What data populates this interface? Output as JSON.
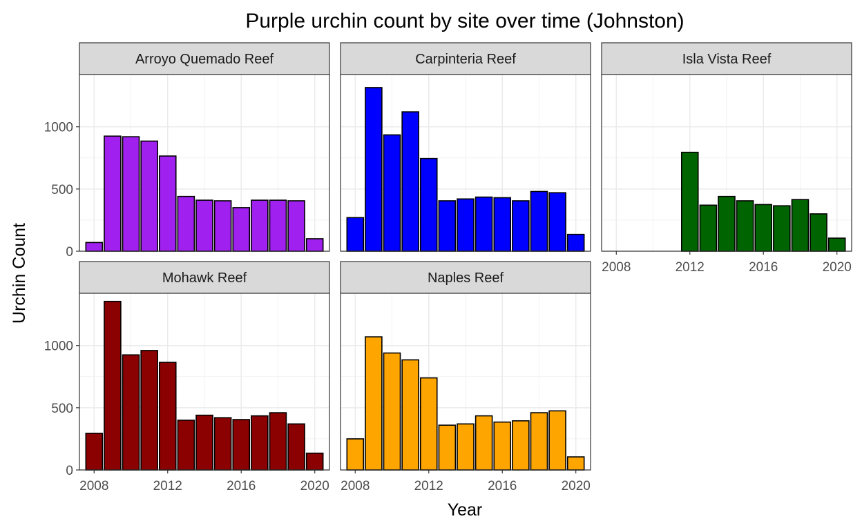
{
  "chart_data": {
    "type": "bar",
    "title": "Purple urchin count by site over time (Johnston)",
    "xlabel": "Year",
    "ylabel": "Urchin Count",
    "xlim": [
      2007.2,
      2020.8
    ],
    "ylim": [
      0,
      1420
    ],
    "x_ticks": [
      2008,
      2012,
      2016,
      2020
    ],
    "y_ticks": [
      0,
      500,
      1000
    ],
    "grid": true,
    "facets": [
      {
        "name": "Arroyo Quemado Reef",
        "color": "#a020f0",
        "x": [
          2008,
          2009,
          2010,
          2011,
          2012,
          2013,
          2014,
          2015,
          2016,
          2017,
          2018,
          2019,
          2020
        ],
        "values": [
          70,
          925,
          920,
          885,
          765,
          440,
          410,
          405,
          350,
          410,
          410,
          405,
          100
        ]
      },
      {
        "name": "Carpinteria Reef",
        "color": "#0000ff",
        "x": [
          2008,
          2009,
          2010,
          2011,
          2012,
          2013,
          2014,
          2015,
          2016,
          2017,
          2018,
          2019,
          2020
        ],
        "values": [
          270,
          1315,
          935,
          1120,
          745,
          405,
          420,
          435,
          430,
          405,
          480,
          470,
          135
        ]
      },
      {
        "name": "Isla Vista Reef",
        "color": "#006400",
        "x": [
          2012,
          2013,
          2014,
          2015,
          2016,
          2017,
          2018,
          2019,
          2020
        ],
        "values": [
          795,
          370,
          440,
          405,
          375,
          365,
          415,
          300,
          105
        ]
      },
      {
        "name": "Mohawk Reef",
        "color": "#8b0000",
        "x": [
          2008,
          2009,
          2010,
          2011,
          2012,
          2013,
          2014,
          2015,
          2016,
          2017,
          2018,
          2019,
          2020
        ],
        "values": [
          295,
          1355,
          925,
          960,
          865,
          400,
          440,
          420,
          405,
          435,
          460,
          370,
          135
        ]
      },
      {
        "name": "Naples Reef",
        "color": "#ffa500",
        "x": [
          2008,
          2009,
          2010,
          2011,
          2012,
          2013,
          2014,
          2015,
          2016,
          2017,
          2018,
          2019,
          2020
        ],
        "values": [
          250,
          1070,
          940,
          885,
          740,
          360,
          370,
          435,
          385,
          395,
          460,
          475,
          105
        ]
      }
    ]
  }
}
